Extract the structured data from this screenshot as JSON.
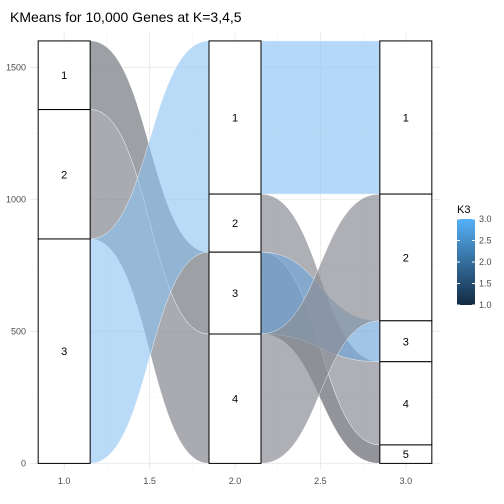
{
  "chart_data": {
    "type": "alluvial",
    "title": "KMeans for 10,000 Genes at K=3,4,5",
    "xlabel": "",
    "ylabel": "",
    "xlim": [
      0.8,
      3.2
    ],
    "ylim": [
      -25,
      1630
    ],
    "x_ticks": [
      1.0,
      1.5,
      2.0,
      2.5,
      3.0
    ],
    "x_tick_labels": [
      "1.0",
      "1.5",
      "2.0",
      "2.5",
      "3.0"
    ],
    "y_ticks": [
      0,
      500,
      1000,
      1500
    ],
    "y_tick_labels": [
      "0",
      "500",
      "1000",
      "1500"
    ],
    "grid": true,
    "axes": [
      {
        "x": 1.0,
        "strata": [
          {
            "label": "1",
            "lo": 1340,
            "hi": 1600
          },
          {
            "label": "2",
            "lo": 850,
            "hi": 1340
          },
          {
            "label": "3",
            "lo": 0,
            "hi": 850
          }
        ]
      },
      {
        "x": 2.0,
        "strata": [
          {
            "label": "1",
            "lo": 1020,
            "hi": 1600
          },
          {
            "label": "2",
            "lo": 800,
            "hi": 1020
          },
          {
            "label": "3",
            "lo": 490,
            "hi": 800
          },
          {
            "label": "4",
            "lo": 0,
            "hi": 490
          }
        ]
      },
      {
        "x": 3.0,
        "strata": [
          {
            "label": "1",
            "lo": 1020,
            "hi": 1600
          },
          {
            "label": "2",
            "lo": 540,
            "hi": 1020
          },
          {
            "label": "3",
            "lo": 385,
            "hi": 540
          },
          {
            "label": "4",
            "lo": 70,
            "hi": 385
          },
          {
            "label": "5",
            "lo": 0,
            "hi": 70
          }
        ]
      }
    ],
    "flows": [
      {
        "from_axis": 1,
        "to_axis": 2,
        "from_lo": 1340,
        "from_hi": 1600,
        "to_lo": 490,
        "to_hi": 800,
        "color": "#8c8f95",
        "opacity": 0.85
      },
      {
        "from_axis": 1,
        "to_axis": 2,
        "from_lo": 850,
        "from_hi": 1340,
        "to_lo": 0,
        "to_hi": 490,
        "color": "#8c8f95",
        "opacity": 0.75
      },
      {
        "from_axis": 1,
        "to_axis": 2,
        "from_lo": 0,
        "from_hi": 850,
        "to_lo": 800,
        "to_hi": 1600,
        "color": "#8cc3f3",
        "opacity": 0.6
      },
      {
        "from_axis": 2,
        "to_axis": 3,
        "from_lo": 1020,
        "from_hi": 1600,
        "to_lo": 1020,
        "to_hi": 1600,
        "color": "#8cc3f3",
        "opacity": 0.65
      },
      {
        "from_axis": 2,
        "to_axis": 3,
        "from_lo": 800,
        "from_hi": 1020,
        "to_lo": 70,
        "to_hi": 385,
        "color": "#8c8f95",
        "opacity": 0.7
      },
      {
        "from_axis": 2,
        "to_axis": 3,
        "from_lo": 490,
        "from_hi": 800,
        "to_lo": 0,
        "to_hi": 70,
        "color": "#6d7078",
        "opacity": 0.75
      },
      {
        "from_axis": 2,
        "to_axis": 3,
        "from_lo": 490,
        "from_hi": 800,
        "to_lo": 385,
        "to_hi": 540,
        "color": "#6ea6d8",
        "opacity": 0.65
      },
      {
        "from_axis": 2,
        "to_axis": 3,
        "from_lo": 0,
        "from_hi": 490,
        "to_lo": 540,
        "to_hi": 1020,
        "color": "#8c8f95",
        "opacity": 0.7
      }
    ],
    "legend": {
      "title": "K3",
      "placement": "right",
      "min": 1.0,
      "max": 3.0,
      "ticks": [
        1.0,
        1.5,
        2.0,
        2.5,
        3.0
      ],
      "tick_labels": [
        "1.0",
        "1.5",
        "2.0",
        "2.5",
        "3.0"
      ],
      "color_low": "#132b43",
      "color_high": "#56b1f7"
    }
  }
}
